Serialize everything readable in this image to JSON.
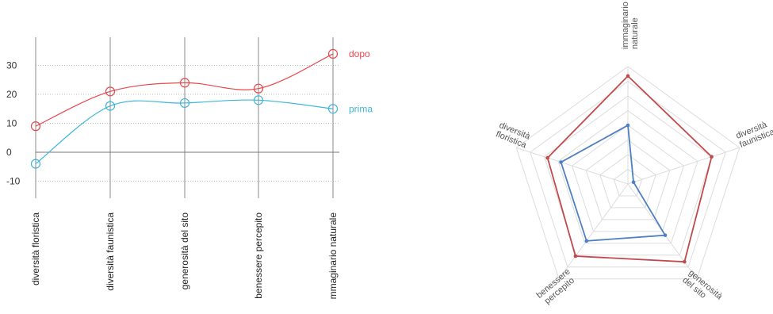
{
  "chart_data": [
    {
      "type": "line",
      "categories": [
        "diversità floristica",
        "diversità faunistica",
        "generosità del sito",
        "benessere percepito",
        "mmaginario naturale"
      ],
      "yticks": [
        30,
        20,
        10,
        0,
        -10
      ],
      "ylim": [
        -18,
        40
      ],
      "series": [
        {
          "name": "dopo",
          "color": "#e8474c",
          "values": [
            9,
            21,
            24,
            22,
            34
          ]
        },
        {
          "name": "prima",
          "color": "#3fb6dc",
          "values": [
            -4,
            16,
            17,
            18,
            15
          ]
        }
      ]
    },
    {
      "type": "radar",
      "axes": [
        {
          "label": [
            "immaginario",
            "naturale"
          ]
        },
        {
          "label": [
            "diversità",
            "faunistica"
          ]
        },
        {
          "label": [
            "generosità",
            "del sito"
          ]
        },
        {
          "label": [
            "benessere",
            "percepito"
          ]
        },
        {
          "label": [
            "diversità",
            "floristica"
          ]
        }
      ],
      "rmax": 10,
      "rings": 8,
      "series": [
        {
          "color": "#c2494b",
          "values": [
            9.2,
            7.5,
            8.2,
            7.6,
            7.2
          ]
        },
        {
          "color": "#4e7fc0",
          "values": [
            5.0,
            0.5,
            5.4,
            6.0,
            6.0
          ]
        }
      ]
    }
  ]
}
